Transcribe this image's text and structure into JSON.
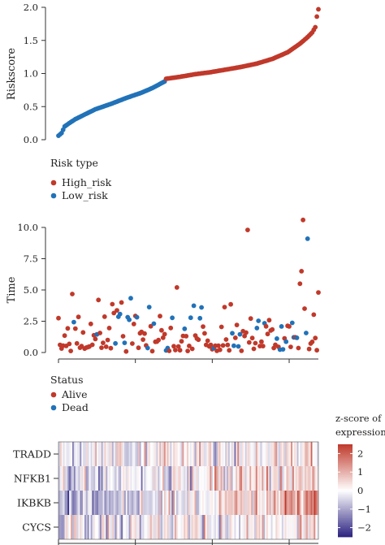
{
  "chart_data": [
    {
      "type": "scatter",
      "ylabel": "Riskscore",
      "ylim": [
        0,
        2.0
      ],
      "yticks": [
        "0.0",
        "0.5",
        "1.0",
        "1.5",
        "2.0"
      ],
      "n_samples": 170,
      "split_index": 70,
      "low_curve": [
        [
          1,
          0.06
        ],
        [
          3,
          0.1
        ],
        [
          5,
          0.2
        ],
        [
          8,
          0.25
        ],
        [
          12,
          0.31
        ],
        [
          18,
          0.38
        ],
        [
          25,
          0.46
        ],
        [
          35,
          0.54
        ],
        [
          45,
          0.63
        ],
        [
          55,
          0.71
        ],
        [
          62,
          0.78
        ],
        [
          70,
          0.88
        ]
      ],
      "high_curve": [
        [
          71,
          0.92
        ],
        [
          80,
          0.95
        ],
        [
          90,
          0.99
        ],
        [
          100,
          1.02
        ],
        [
          110,
          1.06
        ],
        [
          120,
          1.1
        ],
        [
          130,
          1.15
        ],
        [
          140,
          1.22
        ],
        [
          150,
          1.32
        ],
        [
          158,
          1.45
        ],
        [
          163,
          1.55
        ],
        [
          166,
          1.62
        ],
        [
          168,
          1.7
        ],
        [
          169,
          1.86
        ],
        [
          170,
          1.97
        ]
      ],
      "legend": {
        "title": "Risk type",
        "entries": [
          {
            "label": "High_risk",
            "color": "#c0392b"
          },
          {
            "label": "Low_risk",
            "color": "#2172b8"
          }
        ]
      }
    },
    {
      "type": "scatter",
      "ylabel": "Time",
      "ylim": [
        0,
        11
      ],
      "yticks": [
        "0.0",
        "2.5",
        "5.0",
        "7.5",
        "10.0"
      ],
      "highlight_points": [
        {
          "x": 124,
          "y": 9.8,
          "status": "alive"
        },
        {
          "x": 160,
          "y": 10.6,
          "status": "alive"
        },
        {
          "x": 163,
          "y": 9.1,
          "status": "dead"
        },
        {
          "x": 159,
          "y": 6.5,
          "status": "alive"
        },
        {
          "x": 158,
          "y": 5.5,
          "status": "alive"
        },
        {
          "x": 170,
          "y": 4.8,
          "status": "alive"
        },
        {
          "x": 78,
          "y": 5.2,
          "status": "alive"
        },
        {
          "x": 27,
          "y": 4.2,
          "status": "alive"
        },
        {
          "x": 42,
          "y": 4.0,
          "status": "alive"
        }
      ],
      "legend": {
        "title": "Status",
        "entries": [
          {
            "label": "Alive",
            "color": "#c0392b"
          },
          {
            "label": "Dead",
            "color": "#2172b8"
          }
        ]
      }
    },
    {
      "type": "heatmap",
      "rows": [
        "TRADD",
        "NFKB1",
        "IKBKB",
        "CYCS"
      ],
      "n_columns": 170,
      "colorbar": {
        "title_lines": [
          "z-score of",
          "expression"
        ],
        "ticks": [
          "2",
          "1",
          "0",
          "−1",
          "−2"
        ],
        "range": [
          -2.5,
          2.5
        ],
        "colors": {
          "low": "#2c2380",
          "mid": "#ffffff",
          "high": "#c0392b"
        }
      }
    }
  ]
}
